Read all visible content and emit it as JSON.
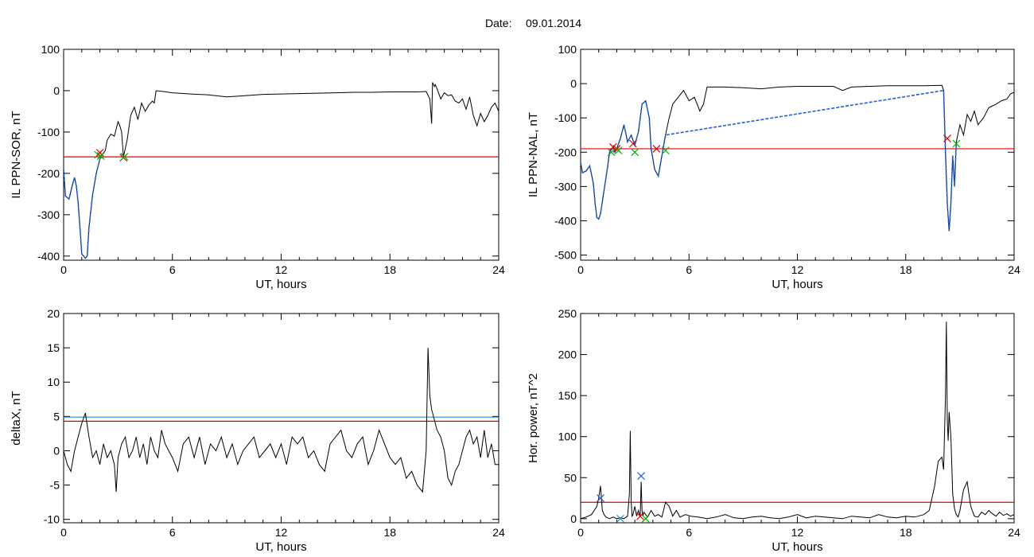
{
  "header": {
    "date_label": "Date:",
    "date_value": "09.01.2014"
  },
  "colors": {
    "data_line": "#000000",
    "blue": "#1f5fd6",
    "red": "#e00000",
    "green": "#00b000",
    "cyan_line": "#2a8fd0"
  },
  "chart_data": [
    {
      "id": "p1",
      "type": "line",
      "ylabel": "IL PPN-SOR, nT",
      "xlabel": "UT, hours",
      "xlim": [
        0,
        24
      ],
      "ylim": [
        -410,
        100
      ],
      "xticks": [
        0,
        6,
        12,
        18,
        24
      ],
      "yticks": [
        100,
        0,
        -100,
        -200,
        -300,
        -400
      ],
      "series": [
        {
          "color": "black",
          "x": [
            0,
            0.1,
            0.3,
            0.5,
            0.6,
            0.7,
            0.8,
            0.9,
            1.0,
            1.2,
            1.3,
            1.4,
            1.6,
            1.8,
            2.0,
            2.1,
            2.3,
            2.4,
            2.6,
            2.8,
            3.0,
            3.1,
            3.2,
            3.3,
            3.5,
            3.7,
            3.9,
            4.1,
            4.3,
            4.5,
            4.7,
            4.9,
            5.0,
            5.1,
            5.5,
            6,
            7,
            8,
            9,
            10,
            11,
            12,
            13,
            14,
            15,
            16,
            17,
            18,
            19,
            19.5,
            20.0,
            20.2,
            20.3,
            20.35,
            20.45,
            20.5,
            20.6,
            20.8,
            21.0,
            21.2,
            21.4,
            21.6,
            21.8,
            22.0,
            22.2,
            22.4,
            22.6,
            22.8,
            23.0,
            23.2,
            23.4,
            23.6,
            23.8,
            24.0
          ],
          "y": [
            -190,
            -255,
            -262,
            -225,
            -210,
            -230,
            -270,
            -330,
            -395,
            -405,
            -400,
            -330,
            -250,
            -200,
            -165,
            -155,
            -145,
            -120,
            -105,
            -110,
            -75,
            -85,
            -100,
            -160,
            -120,
            -60,
            -40,
            -70,
            -30,
            -50,
            -35,
            -25,
            -30,
            0,
            -2,
            -5,
            -8,
            -10,
            -15,
            -12,
            -9,
            -8,
            -7,
            -6,
            -5,
            -4,
            -4,
            -3,
            -3,
            -3,
            -2,
            -20,
            -80,
            20,
            10,
            15,
            5,
            -20,
            -5,
            -12,
            -10,
            -25,
            -30,
            -20,
            -45,
            -15,
            -60,
            -85,
            -55,
            -75,
            -60,
            -40,
            -30,
            -50
          ]
        },
        {
          "color": "blue",
          "x": [
            0,
            0.1,
            0.3,
            0.5,
            0.6,
            0.7,
            0.8,
            0.9,
            1.0,
            1.2,
            1.3,
            1.4,
            1.6,
            1.8,
            2.0,
            2.1
          ],
          "y": [
            -190,
            -255,
            -262,
            -225,
            -210,
            -230,
            -270,
            -330,
            -395,
            -405,
            -400,
            -330,
            -250,
            -200,
            -165,
            -155
          ]
        }
      ],
      "hlines": [
        {
          "y": -160,
          "color": "red"
        }
      ],
      "markers": [
        {
          "x": 1.9,
          "y": -155,
          "color": "green"
        },
        {
          "x": 2.0,
          "y": -150,
          "color": "red"
        },
        {
          "x": 2.05,
          "y": -158,
          "color": "green"
        },
        {
          "x": 3.3,
          "y": -162,
          "color": "red"
        },
        {
          "x": 3.35,
          "y": -160,
          "color": "green"
        }
      ]
    },
    {
      "id": "p2",
      "type": "line",
      "ylabel": "IL PPN-NAL, nT",
      "xlabel": "UT, hours",
      "xlim": [
        0,
        24
      ],
      "ylim": [
        -515,
        100
      ],
      "xticks": [
        0,
        6,
        12,
        18,
        24
      ],
      "yticks": [
        100,
        0,
        -100,
        -200,
        -300,
        -400,
        -500
      ],
      "series": [
        {
          "color": "black",
          "x": [
            0,
            0.1,
            0.3,
            0.5,
            0.7,
            0.8,
            0.9,
            1.0,
            1.1,
            1.3,
            1.5,
            1.6,
            1.8,
            1.9,
            2.0,
            2.2,
            2.4,
            2.6,
            2.8,
            3.0,
            3.2,
            3.4,
            3.6,
            3.8,
            3.9,
            4.1,
            4.3,
            4.5,
            4.7,
            4.9,
            5.1,
            5.4,
            5.7,
            6.0,
            6.3,
            6.6,
            6.8,
            7.0,
            8,
            9,
            10,
            11,
            12,
            13,
            14,
            14.5,
            15,
            16,
            17,
            18,
            19,
            20.0,
            20.1,
            20.2,
            20.3,
            20.4,
            20.5,
            20.6,
            20.7,
            20.8,
            21.0,
            21.2,
            21.4,
            21.6,
            21.8,
            22.0,
            22.3,
            22.6,
            23.0,
            23.3,
            23.6,
            23.8,
            24.0
          ],
          "y": [
            -230,
            -260,
            -255,
            -240,
            -290,
            -350,
            -390,
            -395,
            -380,
            -310,
            -240,
            -200,
            -185,
            -200,
            -190,
            -160,
            -120,
            -170,
            -150,
            -180,
            -140,
            -60,
            -50,
            -100,
            -190,
            -250,
            -270,
            -210,
            -150,
            -100,
            -60,
            -40,
            -20,
            -50,
            -40,
            -80,
            -60,
            -10,
            -10,
            -12,
            -15,
            -10,
            -8,
            -8,
            -8,
            -20,
            -10,
            -8,
            -6,
            -6,
            -6,
            -5,
            -20,
            -200,
            -350,
            -430,
            -350,
            -210,
            -300,
            -170,
            -120,
            -150,
            -90,
            -110,
            -80,
            -120,
            -100,
            -70,
            -60,
            -50,
            -45,
            -30,
            -25
          ]
        },
        {
          "color": "blue",
          "x": [
            0,
            0.1,
            0.3,
            0.5,
            0.7,
            0.8,
            0.9,
            1.0,
            1.1,
            1.3,
            1.5,
            1.6,
            1.8,
            1.9,
            2.0,
            2.2,
            2.4,
            2.6,
            2.8,
            3.0,
            3.2,
            3.4,
            3.6,
            3.8,
            3.9,
            4.1,
            4.3,
            4.5,
            4.7,
            20.1,
            20.2,
            20.3,
            20.4,
            20.5,
            20.6,
            20.7,
            20.8
          ],
          "y": [
            -230,
            -260,
            -255,
            -240,
            -290,
            -350,
            -390,
            -395,
            -380,
            -310,
            -240,
            -200,
            -185,
            -200,
            -190,
            -160,
            -120,
            -170,
            -150,
            -180,
            -140,
            -60,
            -50,
            -100,
            -190,
            -250,
            -270,
            -210,
            -150,
            -20,
            -200,
            -350,
            -430,
            -350,
            -210,
            -300,
            -170
          ]
        }
      ],
      "hlines": [
        {
          "y": -190,
          "color": "red"
        }
      ],
      "markers": [
        {
          "x": 1.7,
          "y": -200,
          "color": "green"
        },
        {
          "x": 1.8,
          "y": -185,
          "color": "red"
        },
        {
          "x": 2.0,
          "y": -190,
          "color": "red"
        },
        {
          "x": 2.1,
          "y": -195,
          "color": "green"
        },
        {
          "x": 2.9,
          "y": -175,
          "color": "red"
        },
        {
          "x": 3.0,
          "y": -200,
          "color": "green"
        },
        {
          "x": 4.2,
          "y": -190,
          "color": "red"
        },
        {
          "x": 4.7,
          "y": -195,
          "color": "green"
        },
        {
          "x": 20.3,
          "y": -160,
          "color": "red"
        },
        {
          "x": 20.8,
          "y": -175,
          "color": "green"
        }
      ]
    },
    {
      "id": "p3",
      "type": "line",
      "ylabel": "deltaX, nT",
      "xlabel": "UT, hours",
      "xlim": [
        0,
        24
      ],
      "ylim": [
        -10.5,
        20
      ],
      "xticks": [
        0,
        6,
        12,
        18,
        24
      ],
      "yticks": [
        20,
        15,
        10,
        5,
        0,
        -5,
        -10
      ],
      "series": [
        {
          "color": "black",
          "x": [
            0,
            0.2,
            0.4,
            0.6,
            0.8,
            1.0,
            1.2,
            1.4,
            1.6,
            1.8,
            2.0,
            2.2,
            2.4,
            2.6,
            2.8,
            2.9,
            3.0,
            3.2,
            3.4,
            3.6,
            3.8,
            4.0,
            4.2,
            4.4,
            4.6,
            4.8,
            5.0,
            5.2,
            5.4,
            5.6,
            5.8,
            6.0,
            6.3,
            6.6,
            6.9,
            7.2,
            7.5,
            7.8,
            8.1,
            8.4,
            8.7,
            9.0,
            9.3,
            9.6,
            9.9,
            10.2,
            10.5,
            10.8,
            11.1,
            11.4,
            11.7,
            12.0,
            12.3,
            12.6,
            12.9,
            13.2,
            13.5,
            13.8,
            14.1,
            14.4,
            14.7,
            15.0,
            15.3,
            15.6,
            15.9,
            16.2,
            16.5,
            16.8,
            17.1,
            17.4,
            17.7,
            18.0,
            18.3,
            18.6,
            18.9,
            19.2,
            19.5,
            19.8,
            20.0,
            20.1,
            20.2,
            20.3,
            20.4,
            20.5,
            20.6,
            20.8,
            21.0,
            21.2,
            21.4,
            21.6,
            21.8,
            22.0,
            22.2,
            22.4,
            22.6,
            22.8,
            23.0,
            23.2,
            23.4,
            23.6,
            23.8,
            24.0
          ],
          "y": [
            0,
            -2,
            -3,
            0,
            2,
            4,
            5.5,
            2,
            -1,
            0,
            -2,
            1,
            -1,
            0,
            -2,
            -6,
            -1,
            1,
            2,
            -1,
            0,
            2,
            -1,
            1,
            -2,
            2,
            0,
            -1,
            3,
            1,
            0,
            -1,
            -3,
            1,
            2,
            -1,
            2,
            -2,
            1,
            0,
            2,
            -1,
            1,
            -2,
            0,
            1,
            2,
            -1,
            0,
            1,
            -1,
            1,
            -2,
            2,
            1,
            2,
            -1,
            0,
            -2,
            -3,
            1,
            2,
            3,
            0,
            -1,
            1,
            2,
            -2,
            0,
            3,
            1,
            -1,
            -2,
            -1,
            -4,
            -3,
            -5,
            -6,
            0,
            15,
            8,
            6,
            5,
            4,
            3,
            2,
            0,
            -4,
            -5,
            -3,
            -2,
            0,
            2,
            3,
            1,
            2,
            -1,
            3,
            -1,
            1,
            -2,
            -2
          ]
        }
      ],
      "hlines": [
        {
          "y": 4.9,
          "color": "cyan"
        },
        {
          "y": 4.3,
          "color": "red"
        }
      ],
      "markers": []
    },
    {
      "id": "p4",
      "type": "line",
      "ylabel": "Hor. power, nT^2",
      "xlabel": "UT, hours",
      "xlim": [
        0,
        24
      ],
      "ylim": [
        -5,
        250
      ],
      "xticks": [
        0,
        6,
        12,
        18,
        24
      ],
      "yticks": [
        250,
        200,
        150,
        100,
        50,
        0
      ],
      "series": [
        {
          "color": "black",
          "x": [
            0,
            0.3,
            0.6,
            0.9,
            1.0,
            1.1,
            1.2,
            1.3,
            1.4,
            1.6,
            1.8,
            2.0,
            2.2,
            2.4,
            2.6,
            2.7,
            2.75,
            2.8,
            2.85,
            2.9,
            3.0,
            3.1,
            3.2,
            3.3,
            3.35,
            3.4,
            3.45,
            3.5,
            3.7,
            3.9,
            4.1,
            4.3,
            4.5,
            4.7,
            4.9,
            5.1,
            5.3,
            5.5,
            5.8,
            6.1,
            6.5,
            7,
            7.5,
            8,
            8.5,
            9,
            9.5,
            10,
            10.5,
            11,
            11.5,
            12,
            12.5,
            13,
            13.5,
            14,
            14.5,
            15,
            15.5,
            16,
            16.5,
            17,
            17.5,
            18,
            18.5,
            19,
            19.3,
            19.6,
            19.8,
            20.0,
            20.1,
            20.2,
            20.25,
            20.3,
            20.35,
            20.4,
            20.5,
            20.6,
            20.7,
            20.8,
            20.9,
            21.0,
            21.2,
            21.4,
            21.5,
            21.6,
            21.8,
            22.0,
            22.2,
            22.4,
            22.6,
            22.8,
            23.0,
            23.2,
            23.4,
            23.6,
            23.8,
            24.0
          ],
          "y": [
            0,
            2,
            5,
            15,
            25,
            40,
            10,
            5,
            2,
            0,
            2,
            0,
            1,
            0,
            3,
            30,
            107,
            20,
            3,
            5,
            15,
            3,
            10,
            2,
            45,
            10,
            3,
            8,
            2,
            10,
            3,
            5,
            2,
            20,
            15,
            3,
            10,
            2,
            5,
            3,
            2,
            0,
            2,
            5,
            1,
            0,
            2,
            3,
            1,
            0,
            2,
            5,
            1,
            3,
            2,
            1,
            0,
            3,
            2,
            1,
            5,
            2,
            1,
            3,
            2,
            5,
            10,
            40,
            70,
            75,
            60,
            150,
            240,
            120,
            95,
            130,
            100,
            30,
            12,
            5,
            2,
            10,
            35,
            45,
            30,
            15,
            3,
            2,
            8,
            5,
            10,
            6,
            3,
            8,
            4,
            6,
            3,
            5
          ]
        }
      ],
      "hlines": [
        {
          "y": 20,
          "color": "red"
        }
      ],
      "markers": [
        {
          "x": 1.1,
          "y": 25,
          "color": "blue"
        },
        {
          "x": 2.2,
          "y": 0,
          "color": "cyan"
        },
        {
          "x": 3.3,
          "y": 3,
          "color": "red"
        },
        {
          "x": 3.35,
          "y": 52,
          "color": "blue"
        },
        {
          "x": 3.6,
          "y": 0,
          "color": "green"
        }
      ]
    }
  ]
}
